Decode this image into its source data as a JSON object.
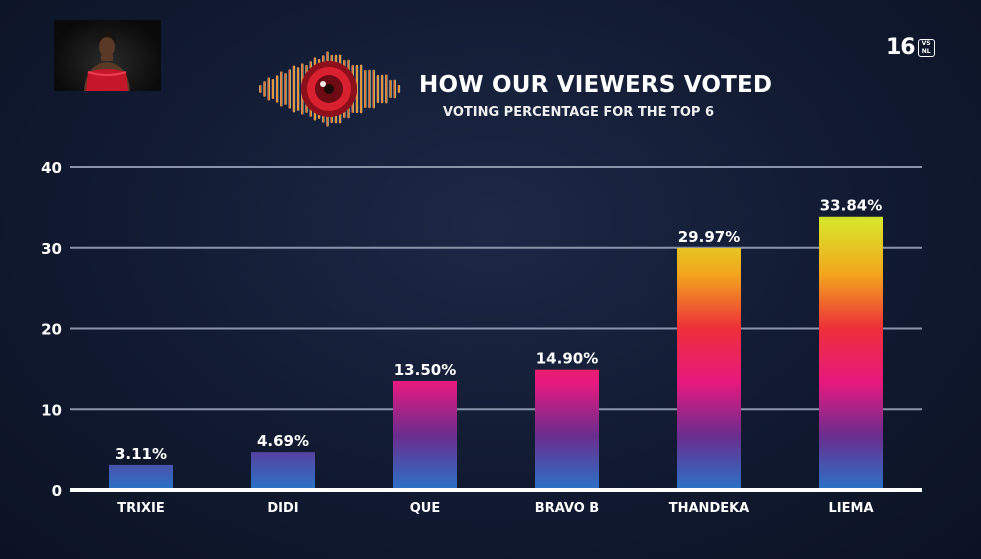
{
  "header": {
    "title": "HOW OUR VIEWERS VOTED",
    "subtitle": "VOTING PERCENTAGE FOR THE TOP 6",
    "rating_number": "16",
    "rating_box_top": "VS",
    "rating_box_bottom": "NL"
  },
  "icons": {
    "logo": "eye-soundwave-logo-icon",
    "rating": "age-rating-badge-icon",
    "thumbnail": "housemate-portrait"
  },
  "chart_data": {
    "type": "bar",
    "categories": [
      "TRIXIE",
      "DIDI",
      "QUE",
      "BRAVO B",
      "THANDEKA",
      "LIEMA"
    ],
    "values": [
      3.11,
      4.69,
      13.5,
      14.9,
      29.97,
      33.84
    ],
    "data_labels": [
      "3.11%",
      "4.69%",
      "13.50%",
      "14.90%",
      "29.97%",
      "33.84%"
    ],
    "yticks": [
      0,
      10,
      20,
      30,
      40
    ],
    "ylim": [
      0,
      40
    ],
    "grid": true,
    "title": "HOW OUR VIEWERS VOTED",
    "subtitle": "VOTING PERCENTAGE FOR THE TOP 6",
    "colors": {
      "rainbow": [
        "#1fae4a",
        "#d8e42a",
        "#f3a51c",
        "#ee2f3a",
        "#e6197e",
        "#6a2d8e",
        "#2a73c8"
      ],
      "grid": "#8a93a8",
      "axis": "#ffffff"
    }
  }
}
